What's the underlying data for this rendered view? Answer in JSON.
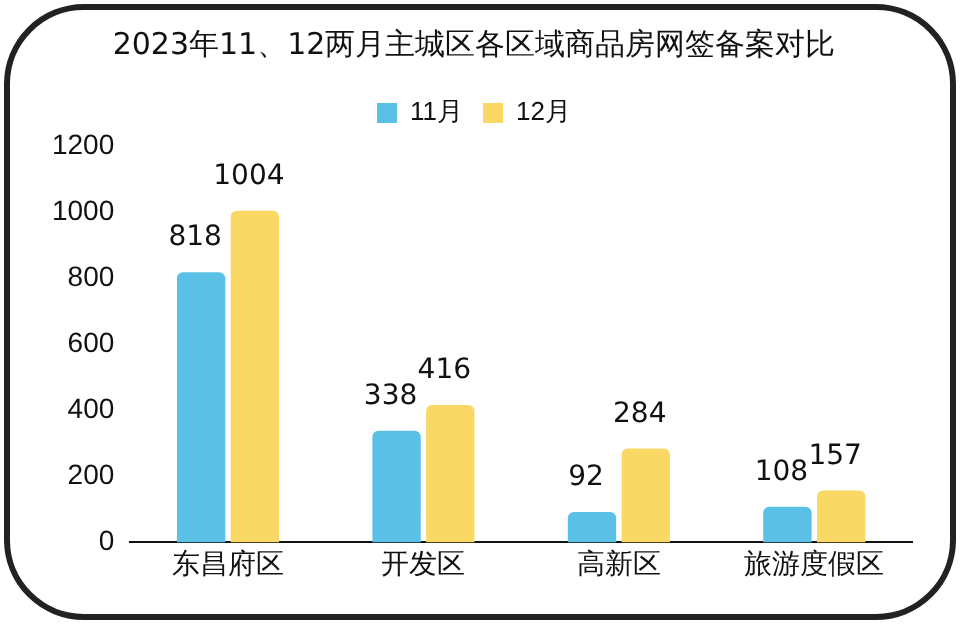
{
  "chart_data": {
    "type": "bar",
    "title": "2023年11、12两月主城区各区域商品房网签备案对比",
    "categories": [
      "东昌府区",
      "开发区",
      "高新区",
      "旅游度假区"
    ],
    "series": [
      {
        "name": "11月",
        "color": "#5bc0e6",
        "values": [
          818,
          338,
          92,
          108
        ]
      },
      {
        "name": "12月",
        "color": "#fad865",
        "values": [
          1004,
          416,
          284,
          157
        ]
      }
    ],
    "ylim": [
      0,
      1200
    ],
    "yticks": [
      0,
      200,
      400,
      600,
      800,
      1000,
      1200
    ],
    "grid": false,
    "legend": "top",
    "data_labels": true
  }
}
